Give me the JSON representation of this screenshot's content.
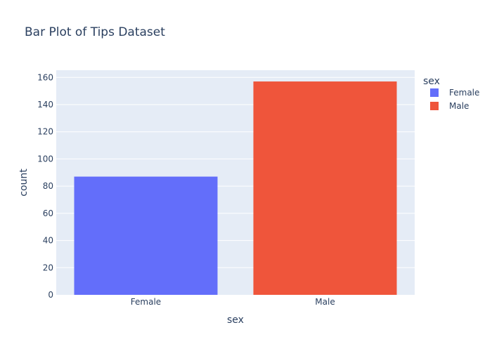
{
  "chart_data": {
    "type": "bar",
    "title": "Bar Plot of Tips Dataset",
    "xlabel": "sex",
    "ylabel": "count",
    "categories": [
      "Female",
      "Male"
    ],
    "values": [
      87,
      157
    ],
    "ylim": [
      0,
      165.3
    ],
    "yticks": [
      0,
      20,
      40,
      60,
      80,
      100,
      120,
      140,
      160
    ],
    "grid": true,
    "legend": {
      "title": "sex",
      "placement": "top-right",
      "entries": [
        "Female",
        "Male"
      ]
    },
    "colors": {
      "Female": "#636efa",
      "Male": "#ef553b",
      "plot_background": "#e5ecf6",
      "gridline": "#ffffff",
      "text": "#2a3f5f"
    }
  }
}
